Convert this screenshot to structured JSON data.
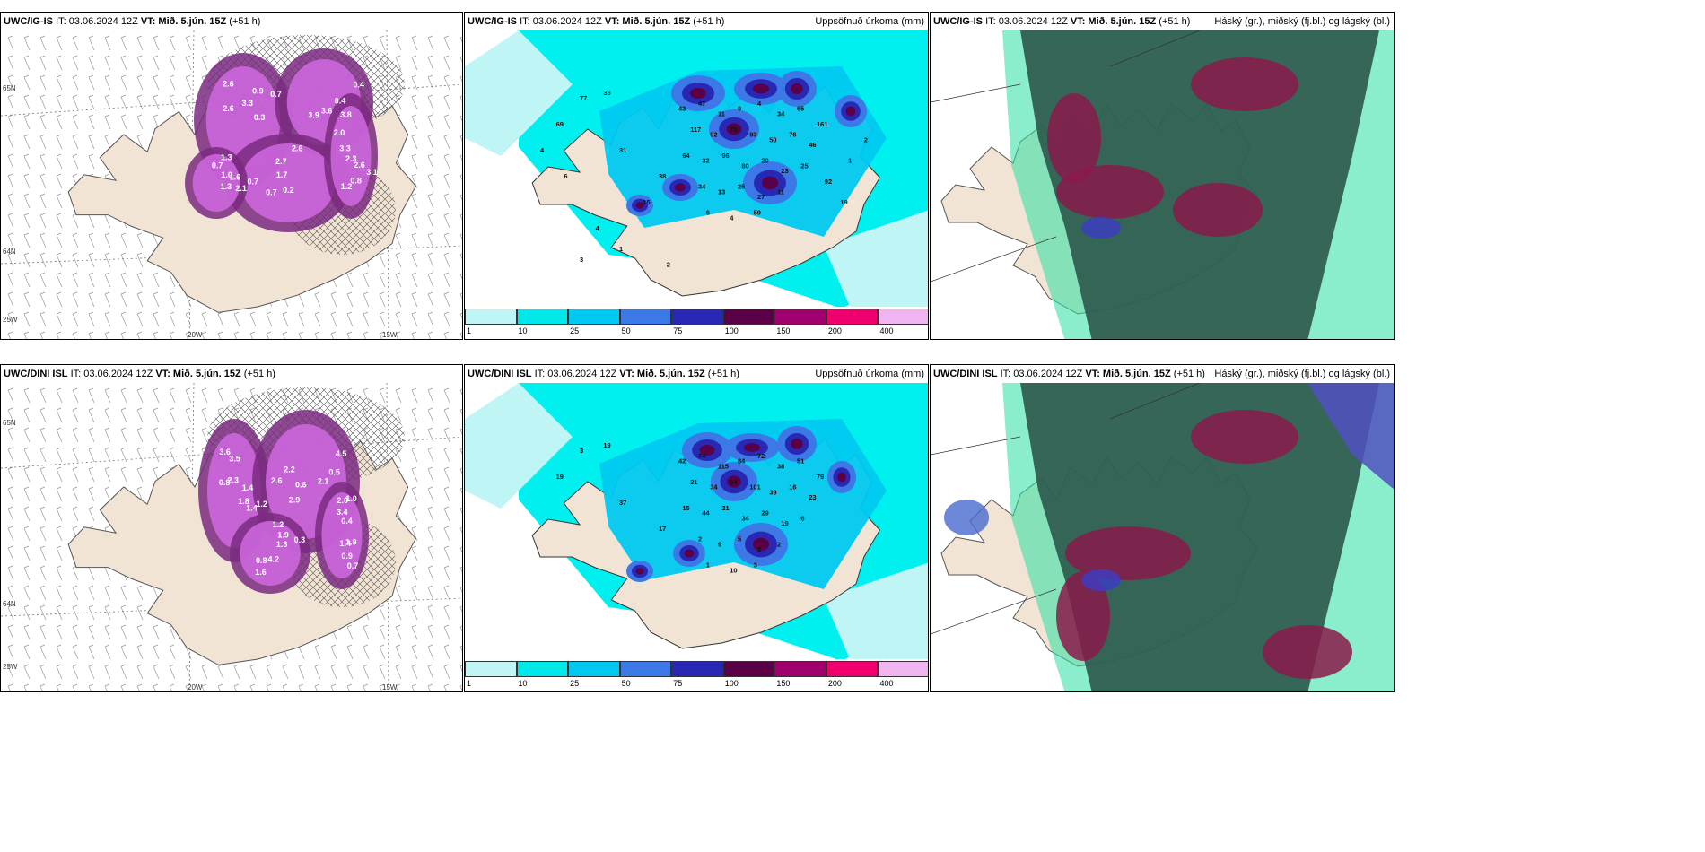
{
  "rows": [
    {
      "model": "UWC/IG-IS",
      "it": "IT: 03.06.2024 12Z",
      "vt_label": "VT:",
      "vt": "Mið. 5.jún. 15Z",
      "lead": "(+51 h)",
      "precip_title": "Uppsöfnuð úrkoma (mm)",
      "cloud_title": "Háský (gr.), miðský (fj.bl.) og lágský (bl.)",
      "wind_labels": [
        "0.3",
        "3.9",
        "2.6",
        "1.3",
        "3.3",
        "0.7",
        "3.6",
        "2.7",
        "2.1",
        "2.3",
        "0.9",
        "2.0",
        "1.7",
        "1.6",
        "1.2",
        "3.3",
        "3.8",
        "0.7",
        "1.0",
        "0.8",
        "2.6",
        "0.4",
        "0.7",
        "1.3",
        "2.6",
        "2.6",
        "0.4",
        "0.2",
        "0.7",
        "3.1"
      ],
      "precip_labels": [
        "43",
        "47",
        "11",
        "9",
        "4",
        "34",
        "65",
        "161",
        "117",
        "92",
        "78",
        "93",
        "50",
        "76",
        "46",
        "64",
        "32",
        "96",
        "80",
        "20",
        "23",
        "25",
        "34",
        "13",
        "25",
        "27",
        "11",
        "6",
        "4",
        "59",
        "77",
        "35",
        "69",
        "31",
        "38",
        "15",
        "92",
        "19",
        "1",
        "2",
        "4",
        "1",
        "3",
        "2",
        "6",
        "4"
      ]
    },
    {
      "model": "UWC/DINI ISL",
      "it": "IT: 03.06.2024 12Z",
      "vt_label": "VT:",
      "vt": "Mið. 5.jún. 15Z",
      "lead": "(+51 h)",
      "precip_title": "Uppsöfnuð úrkoma (mm)",
      "cloud_title": "Háský (gr.), miðský (fj.bl.) og lágský (bl.)",
      "wind_labels": [
        "1.4",
        "2.9",
        "1.2",
        "1.9",
        "0.8",
        "4.5",
        "4.2",
        "3.4",
        "1.2",
        "0.6",
        "1.9",
        "0.7",
        "2.3",
        "0.5",
        "1.6",
        "0.4",
        "1.4",
        "2.6",
        "1.3",
        "0.9",
        "3.6",
        "2.1",
        "0.8",
        "1.0",
        "1.8",
        "2.2",
        "0.3",
        "1.4",
        "3.5",
        "2.0"
      ],
      "precip_labels": [
        "42",
        "74",
        "115",
        "84",
        "72",
        "38",
        "51",
        "79",
        "31",
        "34",
        "54",
        "101",
        "39",
        "16",
        "23",
        "15",
        "44",
        "21",
        "34",
        "29",
        "19",
        "6",
        "2",
        "9",
        "5",
        "2",
        "2",
        "1",
        "10",
        "3",
        "3",
        "19",
        "19",
        "37",
        "17"
      ]
    }
  ],
  "axes": {
    "lat_top": "65N",
    "lat_bottom": "64N",
    "lon_left": "20W",
    "lon_right": "15W",
    "lon_far": "25W"
  },
  "colorbar": {
    "ticks": [
      "1",
      "10",
      "25",
      "50",
      "75",
      "100",
      "150",
      "200",
      "400"
    ],
    "colors": [
      "#bff5f5",
      "#00e8e8",
      "#00c8f0",
      "#3c78e6",
      "#2828b4",
      "#5a0046",
      "#a0006e",
      "#f0006e",
      "#f0b4f0"
    ]
  },
  "colors": {
    "land": "#f2e4d4",
    "wind_fill": "#cc66dd",
    "wind_dark": "#7a2a80",
    "precip_bg": "#00f0f0",
    "cloud_dark": "#2e5a4e",
    "cloud_high": "#8a1a4a",
    "cloud_edge": "#2adfa0"
  }
}
